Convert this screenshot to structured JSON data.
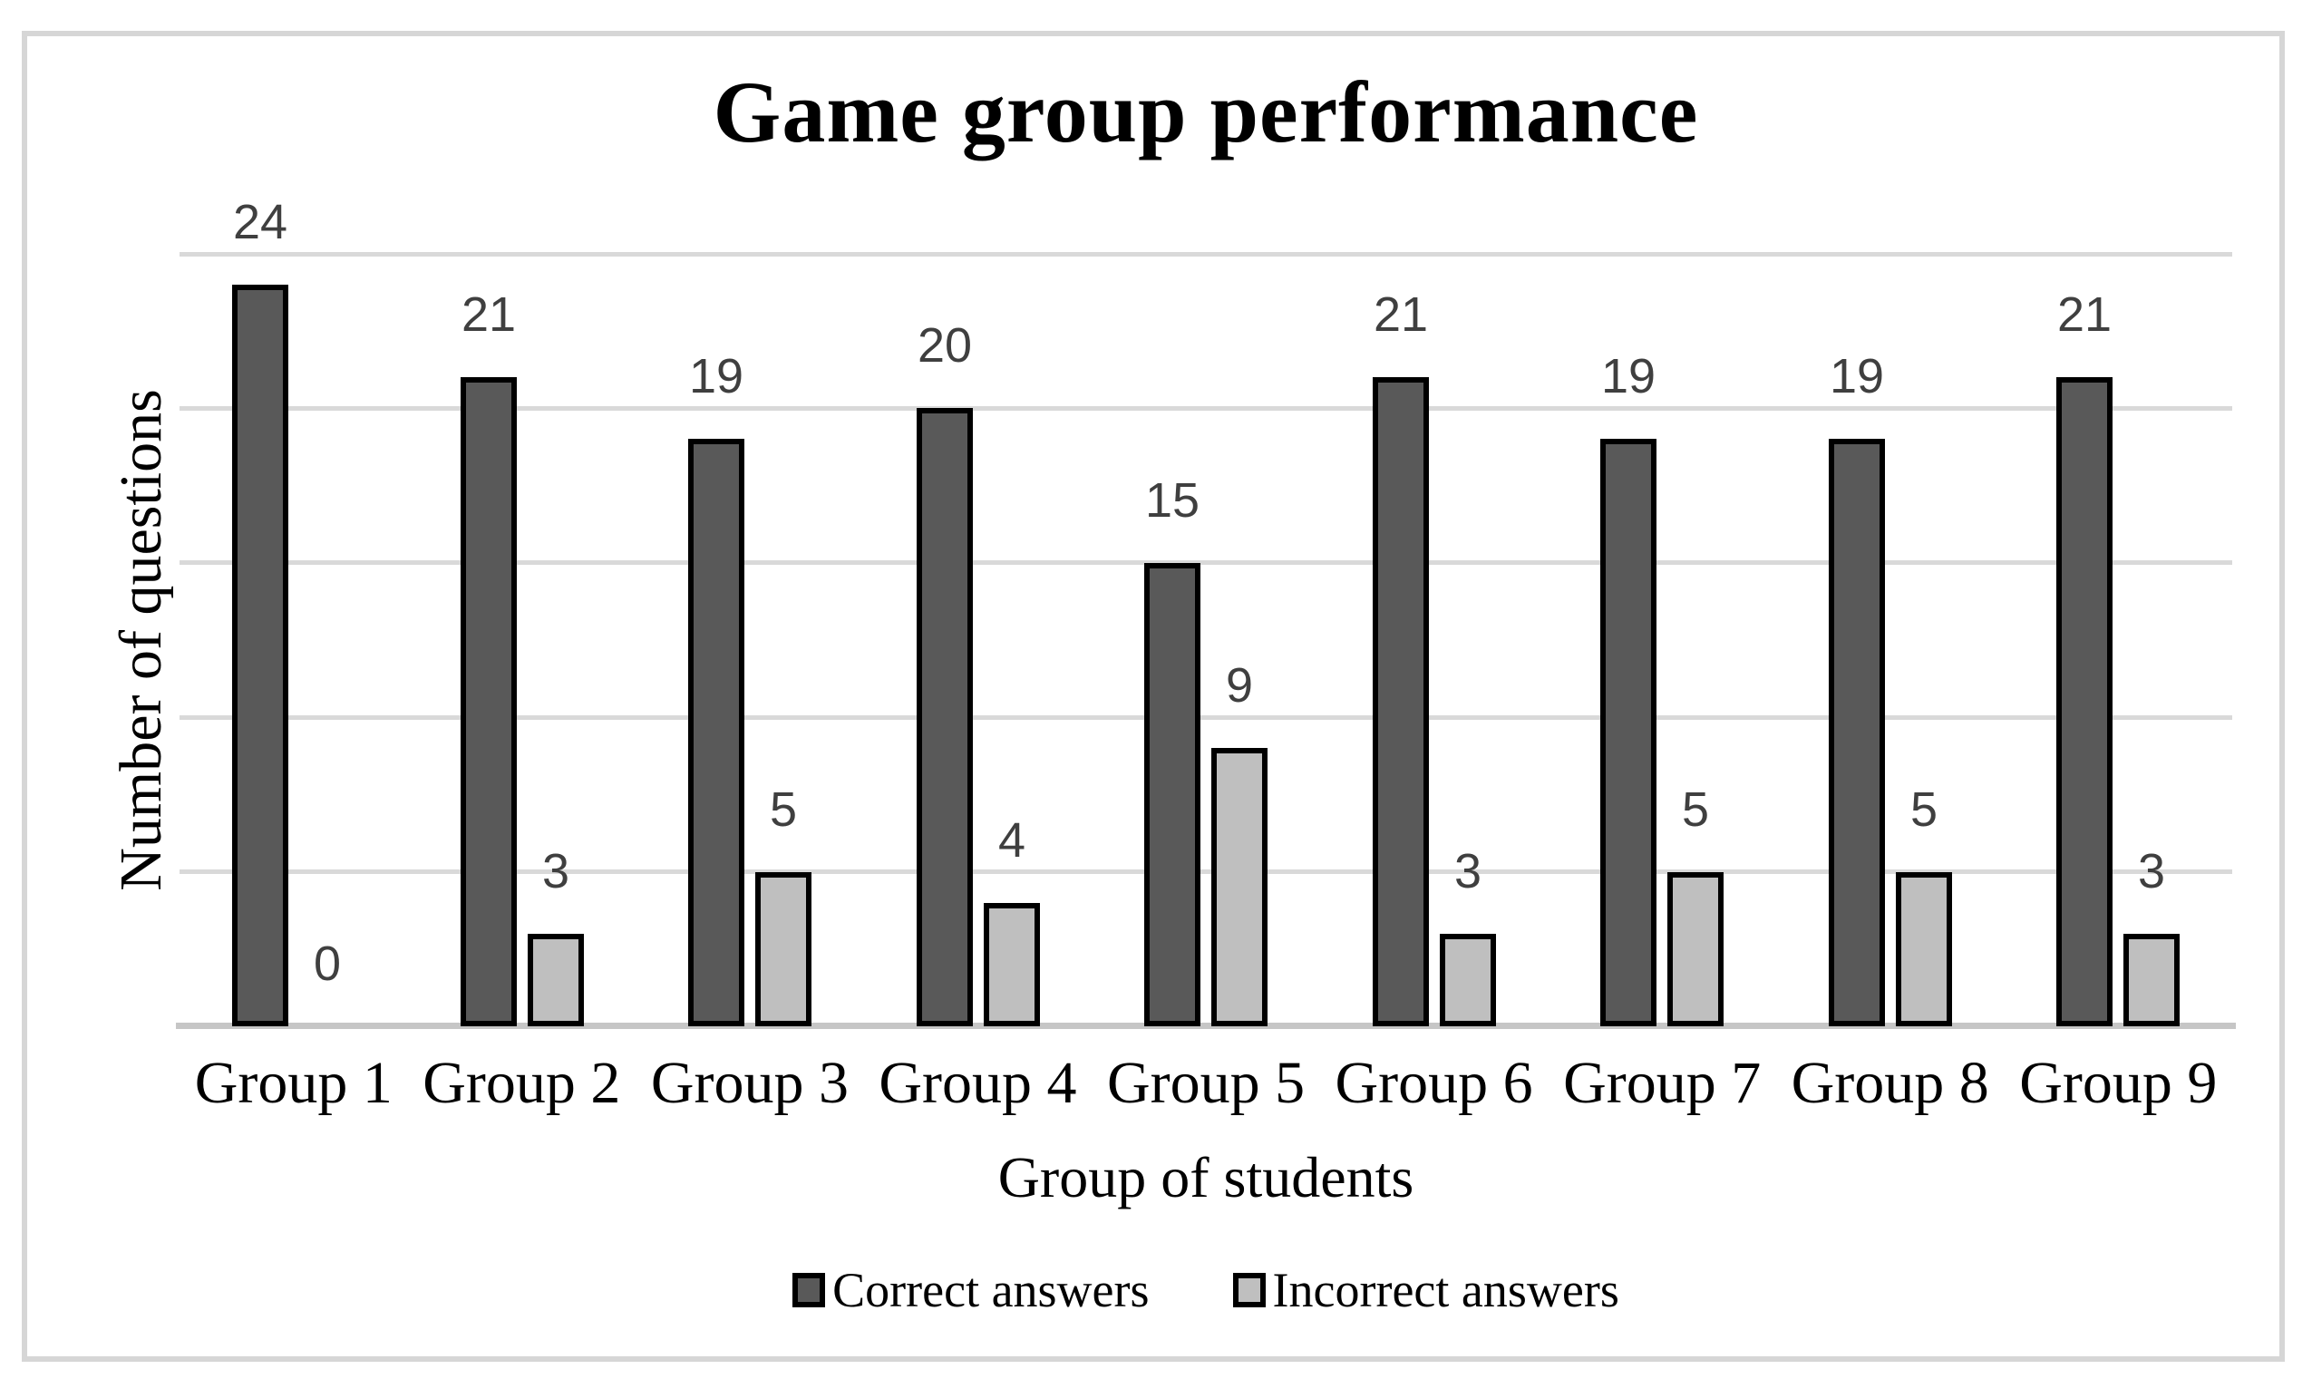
{
  "chart_data": {
    "type": "bar",
    "title": "Game group performance",
    "xlabel": "Group of students",
    "ylabel": "Number of questions",
    "categories": [
      "Group 1",
      "Group 2",
      "Group 3",
      "Group 4",
      "Group 5",
      "Group 6",
      "Group 7",
      "Group 8",
      "Group 9"
    ],
    "series": [
      {
        "name": "Correct answers",
        "color": "#595959",
        "values": [
          24,
          21,
          19,
          20,
          15,
          21,
          19,
          19,
          21
        ]
      },
      {
        "name": "Incorrect answers",
        "color": "#bfbfbf",
        "values": [
          0,
          3,
          5,
          4,
          9,
          3,
          5,
          5,
          3
        ]
      }
    ],
    "ylim": [
      0,
      25
    ],
    "grid_step": 5,
    "grid": true,
    "y_tick_labels_visible": false,
    "legend_position": "bottom",
    "data_label_color": "#3f3f3f",
    "bar_border_color": "#000000",
    "gridline_color": "#d9d9d9",
    "axis_line_color": "#c6c6c6",
    "frame_color": "#d6d6d6"
  }
}
